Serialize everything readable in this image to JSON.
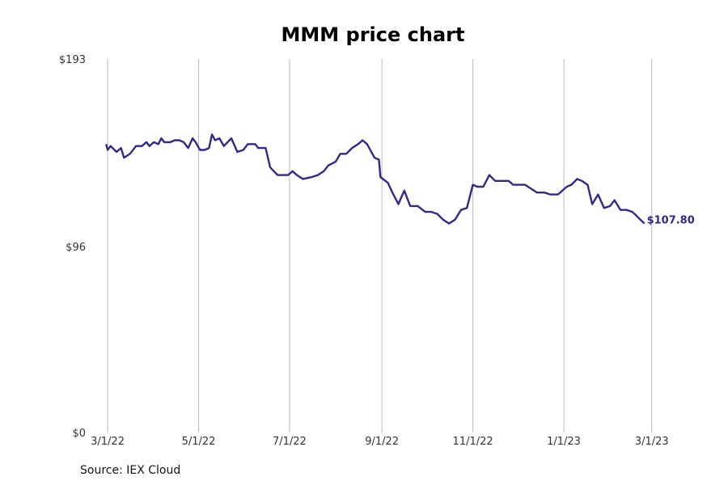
{
  "chart_data": {
    "type": "line",
    "title": "MMM price chart",
    "xlabel": "",
    "ylabel": "",
    "ylim": [
      0,
      193
    ],
    "y_ticks": [
      0,
      96,
      193
    ],
    "y_tick_labels": [
      "$0",
      "$96",
      "$193"
    ],
    "x_range": [
      "2022-02-23",
      "2023-03-06"
    ],
    "x_ticks": [
      "2022-03-01",
      "2022-05-01",
      "2022-07-01",
      "2022-09-01",
      "2022-11-01",
      "2023-01-01",
      "2023-03-01"
    ],
    "x_tick_labels": [
      "3/1/22",
      "5/1/22",
      "7/1/22",
      "9/1/22",
      "11/1/22",
      "1/1/23",
      "3/1/23"
    ],
    "grid": {
      "vertical": true,
      "horizontal": false
    },
    "line_color": "#2e2a8c",
    "end_label": "$107.80",
    "series": [
      {
        "name": "",
        "points": [
          [
            "2022-02-28",
            149
          ],
          [
            "2022-03-01",
            146
          ],
          [
            "2022-03-03",
            148
          ],
          [
            "2022-03-07",
            145
          ],
          [
            "2022-03-10",
            147
          ],
          [
            "2022-03-12",
            142
          ],
          [
            "2022-03-16",
            144
          ],
          [
            "2022-03-20",
            148
          ],
          [
            "2022-03-24",
            148
          ],
          [
            "2022-03-27",
            150
          ],
          [
            "2022-03-29",
            148
          ],
          [
            "2022-04-01",
            150
          ],
          [
            "2022-04-04",
            149
          ],
          [
            "2022-04-06",
            152
          ],
          [
            "2022-04-08",
            150
          ],
          [
            "2022-04-12",
            150
          ],
          [
            "2022-04-15",
            151
          ],
          [
            "2022-04-18",
            151
          ],
          [
            "2022-04-21",
            150
          ],
          [
            "2022-04-24",
            147
          ],
          [
            "2022-04-27",
            152
          ],
          [
            "2022-04-29",
            150
          ],
          [
            "2022-05-02",
            146
          ],
          [
            "2022-05-05",
            146
          ],
          [
            "2022-05-08",
            147
          ],
          [
            "2022-05-10",
            154
          ],
          [
            "2022-05-12",
            151
          ],
          [
            "2022-05-15",
            152
          ],
          [
            "2022-05-18",
            148
          ],
          [
            "2022-05-23",
            152
          ],
          [
            "2022-05-27",
            145
          ],
          [
            "2022-05-31",
            146
          ],
          [
            "2022-06-03",
            149
          ],
          [
            "2022-06-08",
            149
          ],
          [
            "2022-06-10",
            147
          ],
          [
            "2022-06-15",
            147
          ],
          [
            "2022-06-18",
            137
          ],
          [
            "2022-06-23",
            133
          ],
          [
            "2022-06-30",
            133
          ],
          [
            "2022-07-03",
            135
          ],
          [
            "2022-07-06",
            133
          ],
          [
            "2022-07-10",
            131
          ],
          [
            "2022-07-16",
            132
          ],
          [
            "2022-07-20",
            133
          ],
          [
            "2022-07-24",
            135
          ],
          [
            "2022-07-27",
            138
          ],
          [
            "2022-08-01",
            140
          ],
          [
            "2022-08-04",
            144
          ],
          [
            "2022-08-08",
            144
          ],
          [
            "2022-08-12",
            147
          ],
          [
            "2022-08-16",
            149
          ],
          [
            "2022-08-19",
            151
          ],
          [
            "2022-08-22",
            149
          ],
          [
            "2022-08-27",
            142
          ],
          [
            "2022-08-30",
            141
          ],
          [
            "2022-08-31",
            132
          ],
          [
            "2022-09-05",
            129
          ],
          [
            "2022-09-08",
            124
          ],
          [
            "2022-09-12",
            118
          ],
          [
            "2022-09-16",
            125
          ],
          [
            "2022-09-20",
            117
          ],
          [
            "2022-09-25",
            117
          ],
          [
            "2022-09-30",
            114
          ],
          [
            "2022-10-04",
            114
          ],
          [
            "2022-10-08",
            113
          ],
          [
            "2022-10-12",
            110
          ],
          [
            "2022-10-16",
            108
          ],
          [
            "2022-10-20",
            110
          ],
          [
            "2022-10-24",
            115
          ],
          [
            "2022-10-28",
            116
          ],
          [
            "2022-11-01",
            128
          ],
          [
            "2022-11-04",
            127
          ],
          [
            "2022-11-08",
            127
          ],
          [
            "2022-11-12",
            133
          ],
          [
            "2022-11-16",
            130
          ],
          [
            "2022-11-20",
            130
          ],
          [
            "2022-11-25",
            130
          ],
          [
            "2022-11-28",
            128
          ],
          [
            "2022-12-02",
            128
          ],
          [
            "2022-12-06",
            128
          ],
          [
            "2022-12-10",
            126
          ],
          [
            "2022-12-14",
            124
          ],
          [
            "2022-12-19",
            124
          ],
          [
            "2022-12-23",
            123
          ],
          [
            "2022-12-28",
            123
          ],
          [
            "2023-01-03",
            127
          ],
          [
            "2023-01-06",
            128
          ],
          [
            "2023-01-10",
            131
          ],
          [
            "2023-01-13",
            130
          ],
          [
            "2023-01-17",
            128
          ],
          [
            "2023-01-20",
            118
          ],
          [
            "2023-01-24",
            123
          ],
          [
            "2023-01-28",
            116
          ],
          [
            "2023-02-01",
            117
          ],
          [
            "2023-02-04",
            120
          ],
          [
            "2023-02-08",
            115
          ],
          [
            "2023-02-12",
            115
          ],
          [
            "2023-02-16",
            114
          ],
          [
            "2023-02-20",
            111
          ],
          [
            "2023-02-24",
            108
          ]
        ]
      }
    ]
  },
  "source": "Source: IEX Cloud"
}
